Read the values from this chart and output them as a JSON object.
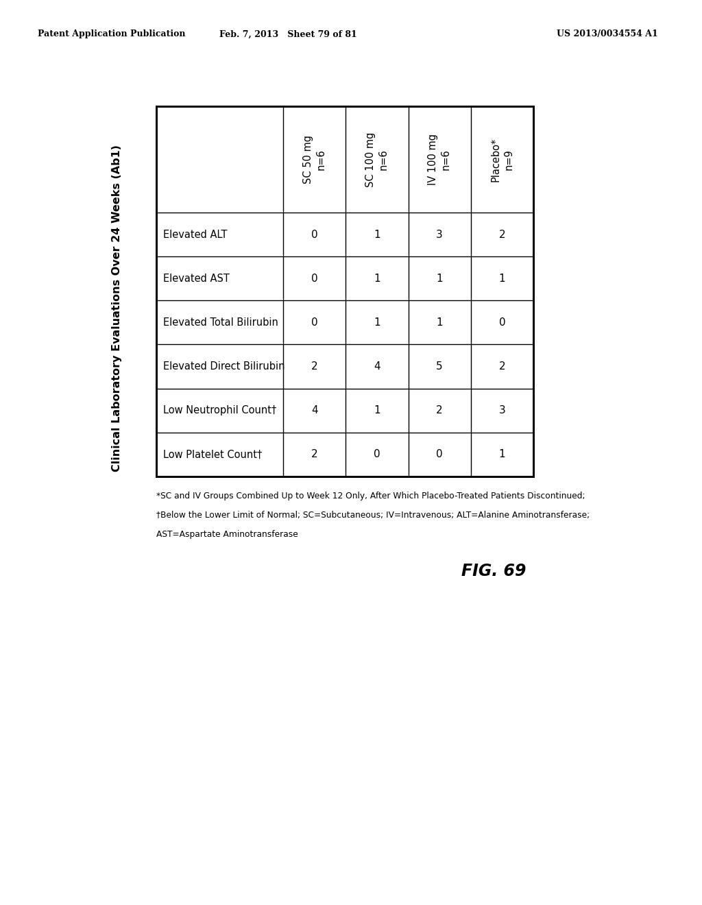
{
  "header_left": "Patent Application Publication",
  "header_mid": "Feb. 7, 2013   Sheet 79 of 81",
  "header_right": "US 2013/0034554 A1",
  "title": "Clinical Laboratory Evaluations Over 24 Weeks (Ab1)",
  "fig_label": "FIG. 69",
  "col_headers": [
    "",
    "SC 50 mg\nn=6",
    "SC 100 mg\nn=6",
    "IV 100 mg\nn=6",
    "Placebo*\nn=9"
  ],
  "row_labels": [
    "Elevated ALT",
    "Elevated AST",
    "Elevated Total Bilirubin",
    "Elevated Direct Bilirubin",
    "Low Neutrophil Count†",
    "Low Platelet Count†"
  ],
  "data": [
    [
      0,
      1,
      3,
      2
    ],
    [
      0,
      1,
      1,
      1
    ],
    [
      0,
      1,
      1,
      0
    ],
    [
      2,
      4,
      5,
      2
    ],
    [
      4,
      1,
      2,
      3
    ],
    [
      2,
      0,
      0,
      1
    ]
  ],
  "footnote1": "*SC and IV Groups Combined Up to Week 12 Only, After Which Placebo-Treated Patients Discontinued;",
  "footnote2": "†Below the Lower Limit of Normal; SC=Subcutaneous; IV=Intravenous; ALT=Alanine Aminotransferase;",
  "footnote3": "AST=Aspartate Aminotransferase",
  "bg_color": "#ffffff",
  "line_color": "#000000",
  "text_color": "#000000"
}
